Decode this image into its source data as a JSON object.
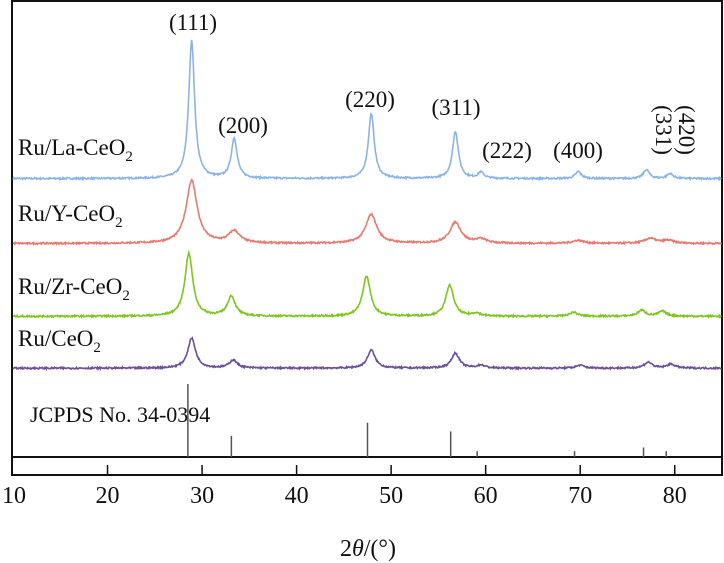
{
  "chart_data": {
    "type": "line",
    "xlabel": "2θ/(°)",
    "xlabel_parts": {
      "pre": "2",
      "theta": "θ",
      "post": "/(°)"
    },
    "xlim": [
      10,
      85
    ],
    "xticks": [
      10,
      20,
      30,
      40,
      50,
      60,
      70,
      80
    ],
    "ylim": [
      0,
      457
    ],
    "ylabel": "",
    "series": [
      {
        "name": "Ru/La-CeO2",
        "label_main": "Ru/La-CeO",
        "label_sub": "2",
        "color": "#8ab4e8",
        "offset": 279,
        "fwhm": 0.75,
        "peaks": [
          [
            28.9,
            138
          ],
          [
            33.4,
            40
          ],
          [
            47.9,
            65
          ],
          [
            56.8,
            47
          ],
          [
            59.5,
            6
          ],
          [
            69.8,
            7
          ],
          [
            77.0,
            9
          ],
          [
            79.5,
            5
          ]
        ]
      },
      {
        "name": "Ru/Y-CeO2",
        "label_main": "Ru/Y-CeO",
        "label_sub": "2",
        "color": "#e8796f",
        "offset": 214,
        "fwhm": 1.4,
        "peaks": [
          [
            28.9,
            63
          ],
          [
            33.4,
            12
          ],
          [
            47.9,
            29
          ],
          [
            56.8,
            21
          ],
          [
            59.5,
            4
          ],
          [
            69.8,
            3
          ],
          [
            77.4,
            5
          ],
          [
            79.3,
            3
          ]
        ]
      },
      {
        "name": "Ru/Zr-CeO2",
        "label_main": "Ru/Zr-CeO",
        "label_sub": "2",
        "color": "#7cc61e",
        "offset": 141,
        "fwhm": 1.0,
        "peaks": [
          [
            28.6,
            63
          ],
          [
            33.1,
            20
          ],
          [
            47.4,
            40
          ],
          [
            56.2,
            31
          ],
          [
            59.0,
            3
          ],
          [
            69.3,
            4
          ],
          [
            76.5,
            6
          ],
          [
            78.7,
            5
          ]
        ]
      },
      {
        "name": "Ru/CeO2",
        "label_main": "Ru/CeO",
        "label_sub": "2",
        "color": "#6a4f9e",
        "offset": 89,
        "fwhm": 1.0,
        "peaks": [
          [
            28.9,
            30
          ],
          [
            33.3,
            8
          ],
          [
            47.9,
            18
          ],
          [
            56.8,
            15
          ],
          [
            59.5,
            3
          ],
          [
            70.0,
            3
          ],
          [
            77.2,
            6
          ],
          [
            79.6,
            4
          ]
        ]
      }
    ],
    "reference": {
      "label": "JCPDS No. 34-0394",
      "lines": [
        [
          28.5,
          100
        ],
        [
          33.1,
          29
        ],
        [
          47.5,
          47
        ],
        [
          56.3,
          35
        ],
        [
          59.1,
          8
        ],
        [
          69.4,
          8
        ],
        [
          76.7,
          13
        ],
        [
          79.1,
          8
        ]
      ]
    },
    "annotations": [
      "(111)",
      "(200)",
      "(220)",
      "(311)",
      "(222)",
      "(400)",
      "(331)",
      "(420)"
    ]
  }
}
